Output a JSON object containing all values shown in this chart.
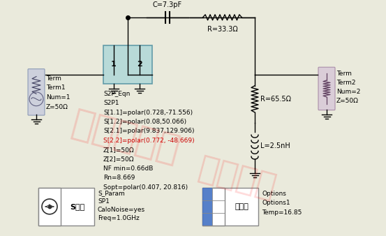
{
  "bg_color": "#eaeadc",
  "s2p_lines": [
    [
      "S2P_Eqn",
      "black"
    ],
    [
      "S2P1",
      "black"
    ],
    [
      "S[1.1]=polar(0.728,-71.556)",
      "black"
    ],
    [
      "S[1.2]=polar(0.08,50.066)",
      "black"
    ],
    [
      "S[2.1]=polar(9.837,129.906)",
      "black"
    ],
    [
      "S[2.2]=polar(0.772, -48.669)",
      "#cc0000"
    ],
    [
      "Z[1]=50Ω",
      "black"
    ],
    [
      "Z[2]=50Ω",
      "black"
    ],
    [
      "NF min=0.66dB",
      "black"
    ],
    [
      "Rn=8.669",
      "black"
    ],
    [
      "Sopt=polar(0.407, 20.816)",
      "black"
    ]
  ],
  "cap_label": "C=7.3pF",
  "res_top_label": "R=33.3Ω",
  "res_right_label": "R=65.5Ω",
  "ind_label": "L=2.5nH",
  "term1_lines": [
    "Term",
    "Term1",
    "Num=1",
    "Z=50Ω"
  ],
  "term2_lines": [
    "Term",
    "Term2",
    "Num=2",
    "Z=50Ω"
  ],
  "sp_label": "S参数",
  "sp_text": [
    "S_Param",
    "SP1",
    "CaloNoise=yes",
    "Freq=1.0GHz"
  ],
  "opt_label": "可选项",
  "opt_text": [
    "Options",
    "Options1",
    "Temp=16.85"
  ],
  "wm1": "电示范设计",
  "wm2": "版权所有"
}
